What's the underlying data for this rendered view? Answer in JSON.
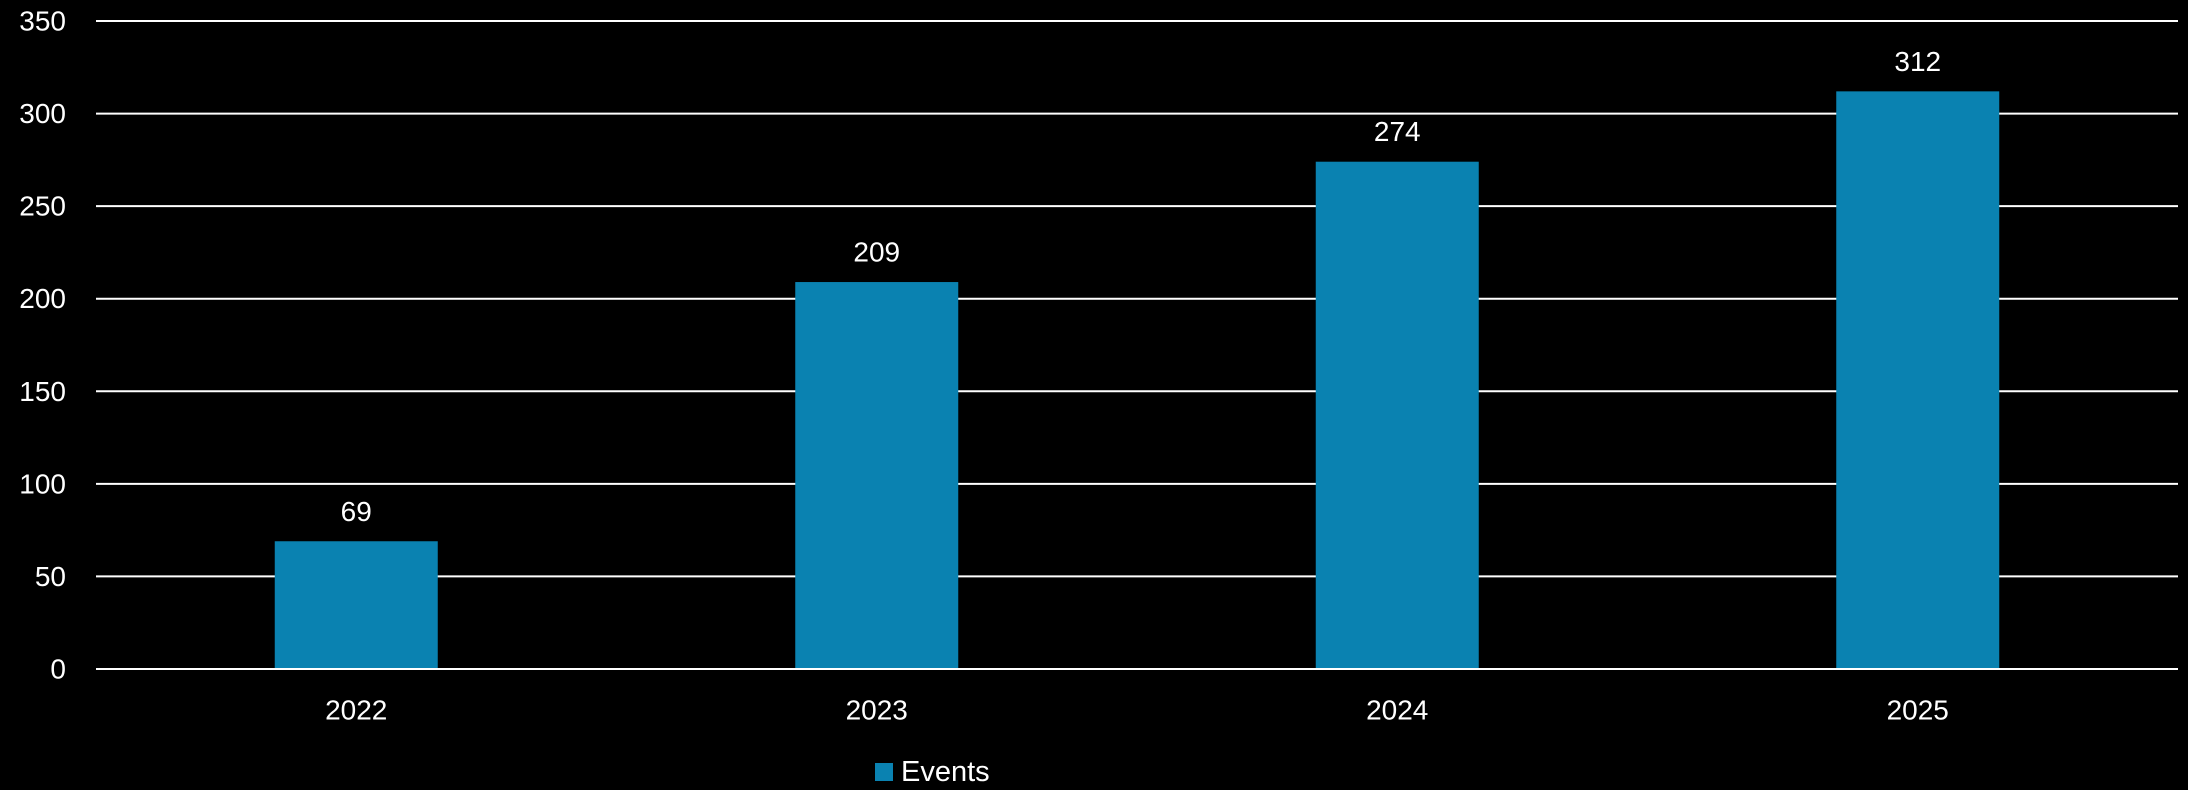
{
  "chart_data": {
    "type": "bar",
    "title": "",
    "xlabel": "",
    "ylabel": "",
    "categories": [
      "2022",
      "2023",
      "2024",
      "2025"
    ],
    "series": [
      {
        "name": "Events",
        "values": [
          69,
          209,
          274,
          312
        ],
        "color": "#0a82b1"
      }
    ],
    "ylim": [
      0,
      350
    ],
    "yticks": [
      0,
      50,
      100,
      150,
      200,
      250,
      300,
      350
    ],
    "grid": true,
    "data_labels": true,
    "legend": {
      "position": "bottom",
      "entries": [
        "Events"
      ]
    }
  },
  "colors": {
    "background": "#000000",
    "gridline": "#ffffff",
    "text": "#ffffff",
    "bar": "#0a82b1"
  }
}
